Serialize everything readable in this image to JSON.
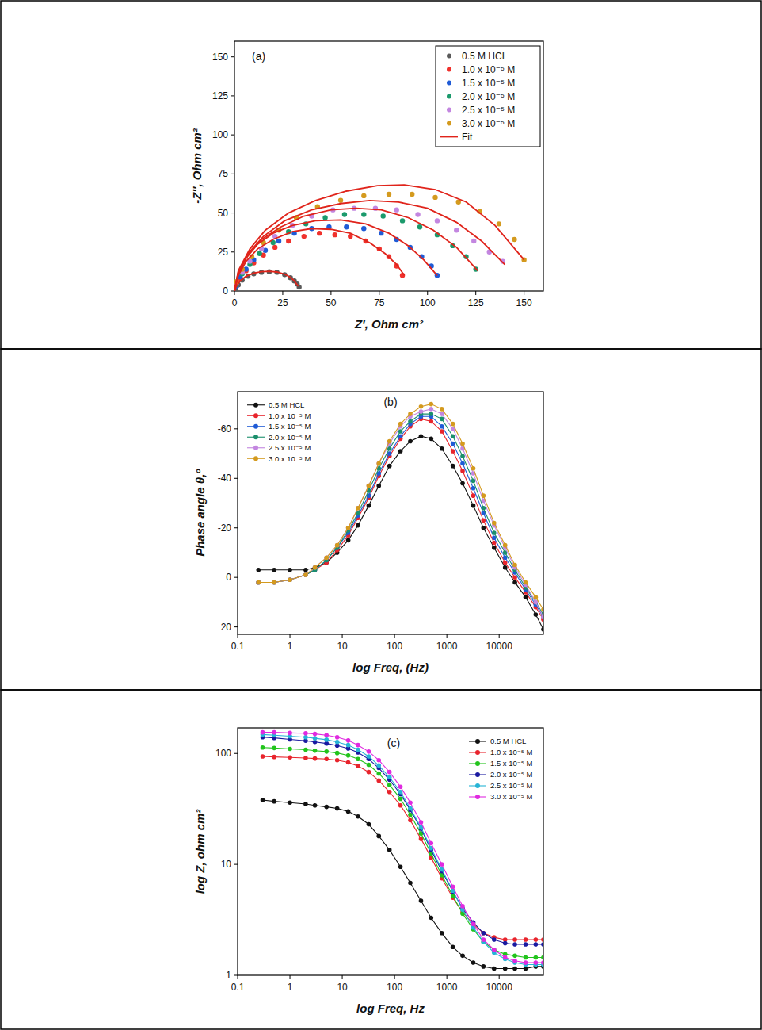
{
  "chart_data": [
    {
      "type": "scatter",
      "title": "(a)",
      "x_label": "Z′, Ohm cm²",
      "y_label": "-Z″, Ohm cm²",
      "xlim": [
        0,
        160
      ],
      "ylim": [
        0,
        160
      ],
      "xticks": [
        0,
        25,
        50,
        75,
        100,
        125,
        150
      ],
      "yticks": [
        0,
        25,
        50,
        75,
        100,
        125,
        150
      ],
      "grid": false,
      "legend": "upper right",
      "series": [
        {
          "name": "0.5 M HCL",
          "color": "#5a5a5a",
          "marker": "circle",
          "x": [
            0.5,
            2,
            4,
            7,
            10,
            14,
            18,
            22,
            26,
            29,
            31,
            32.5,
            33.5
          ],
          "values": [
            1,
            4,
            7,
            9.5,
            11,
            12,
            12.3,
            12,
            10.5,
            8.5,
            6.5,
            4.5,
            2.5
          ]
        },
        {
          "name": "1.0 x 10⁻⁵ M",
          "color": "#f0312c",
          "marker": "circle",
          "x": [
            1,
            3,
            6,
            10,
            15,
            21,
            28,
            36,
            44,
            52,
            60,
            68,
            75,
            80,
            84,
            87
          ],
          "values": [
            3,
            8,
            13,
            18,
            23,
            28,
            32,
            35,
            37,
            36,
            35,
            32,
            27,
            22,
            16,
            10
          ]
        },
        {
          "name": "1.5 x 10⁻⁵ M",
          "color": "#1f5bd6",
          "marker": "circle",
          "x": [
            1,
            3,
            6,
            10,
            16,
            23,
            31,
            40,
            49,
            58,
            67,
            76,
            84,
            91,
            97,
            102,
            105
          ],
          "values": [
            3,
            9,
            14,
            20,
            26,
            32,
            37,
            40,
            41,
            41,
            40,
            37,
            33,
            28,
            22,
            16,
            10
          ]
        },
        {
          "name": "2.0 x 10⁻⁵ M",
          "color": "#1b9a6c",
          "marker": "circle",
          "x": [
            1,
            4,
            8,
            13,
            20,
            28,
            37,
            47,
            57,
            67,
            77,
            87,
            96,
            105,
            113,
            120,
            125
          ],
          "values": [
            4,
            11,
            17,
            24,
            31,
            38,
            43,
            47,
            49,
            49,
            48,
            45,
            41,
            36,
            29,
            22,
            14
          ]
        },
        {
          "name": "2.5 x 10⁻⁵ M",
          "color": "#c386e0",
          "marker": "circle",
          "x": [
            1,
            4,
            8,
            14,
            21,
            30,
            40,
            51,
            62,
            73,
            84,
            95,
            105,
            115,
            124,
            132,
            139
          ],
          "values": [
            5,
            12,
            19,
            27,
            35,
            42,
            48,
            52,
            53,
            53,
            52,
            49,
            45,
            39,
            32,
            25,
            19
          ]
        },
        {
          "name": "3.0 x 10⁻⁵ M",
          "color": "#d49a1e",
          "marker": "circle",
          "x": [
            1,
            4,
            9,
            15,
            23,
            32,
            43,
            55,
            67,
            80,
            92,
            104,
            116,
            127,
            137,
            145,
            150
          ],
          "values": [
            6,
            14,
            22,
            31,
            39,
            47,
            54,
            58,
            61,
            62,
            62,
            60,
            57,
            51,
            43,
            33,
            20
          ]
        },
        {
          "name": "Fit",
          "color": "#e0241b",
          "type": "line",
          "x": [
            0,
            1,
            3,
            6,
            10,
            14,
            18,
            22,
            26,
            29,
            31,
            33,
            null,
            0,
            2,
            6,
            12,
            20,
            30,
            40,
            50,
            60,
            70,
            78,
            84,
            88,
            null,
            0,
            2,
            6,
            12,
            20,
            30,
            42,
            55,
            68,
            80,
            90,
            98,
            105,
            null,
            0,
            2,
            7,
            14,
            24,
            36,
            50,
            63,
            76,
            90,
            103,
            115,
            126,
            null,
            0,
            2,
            7,
            15,
            26,
            40,
            55,
            70,
            85,
            100,
            115,
            128,
            140,
            null,
            0,
            2,
            8,
            16,
            28,
            42,
            58,
            74,
            88,
            104,
            120,
            135,
            150
          ],
          "values": [
            0,
            3,
            6.5,
            9.5,
            11.5,
            12.4,
            12.6,
            12.2,
            10.8,
            8.8,
            6.5,
            3,
            null,
            0,
            10,
            19,
            27,
            33,
            38,
            40,
            39.5,
            37,
            31,
            24,
            17,
            10,
            null,
            0,
            11,
            21,
            30,
            37,
            42,
            45,
            45.5,
            43,
            37,
            29,
            20,
            10,
            null,
            0,
            12,
            23,
            33,
            41,
            48,
            52,
            53,
            52,
            47,
            39,
            28,
            13,
            null,
            0,
            12,
            24,
            35,
            45,
            52,
            56,
            58,
            57,
            53,
            44,
            32,
            17,
            null,
            0,
            13,
            27,
            39,
            50,
            58,
            64,
            67.5,
            68,
            65,
            57,
            42,
            20
          ]
        }
      ]
    },
    {
      "type": "line",
      "title": "(b)",
      "x_label": "log Freq, (Hz)",
      "y_label": "Phase angle θ,º",
      "log": "x",
      "marker": "circle",
      "grid": false,
      "legend": "upper left",
      "xlim": [
        0.1,
        70000
      ],
      "ylim": [
        23,
        -75
      ],
      "xticks": [
        0.1,
        1,
        10,
        100,
        1000,
        10000
      ],
      "yticks": [
        -60,
        -40,
        -20,
        0,
        20
      ],
      "x": [
        0.25,
        0.5,
        1,
        2,
        3,
        5,
        8,
        13,
        20,
        32,
        50,
        80,
        130,
        200,
        320,
        500,
        800,
        1300,
        2000,
        3200,
        5000,
        8000,
        13000,
        20000,
        32000,
        50000,
        70000
      ],
      "series": [
        {
          "name": "0.5 M HCL",
          "color": "#111111",
          "values": [
            -3,
            -3,
            -3,
            -3,
            -4,
            -6,
            -10,
            -15,
            -21,
            -29,
            -37,
            -45,
            -51,
            -55,
            -57,
            -56,
            -52,
            -45,
            -38,
            -29,
            -20,
            -12,
            -4,
            2,
            8,
            15,
            21
          ]
        },
        {
          "name": "1.0 x 10⁻⁵ M",
          "color": "#e8242c",
          "values": [
            2,
            2,
            1,
            -1,
            -3,
            -6,
            -11,
            -17,
            -24,
            -32,
            -41,
            -49,
            -56,
            -61,
            -64,
            -63,
            -59,
            -51,
            -43,
            -33,
            -23,
            -14,
            -6,
            0,
            6,
            12,
            17
          ]
        },
        {
          "name": "1.5 x 10⁻⁵ M",
          "color": "#1f5bd6",
          "values": [
            2,
            2,
            1,
            -1,
            -3,
            -7,
            -12,
            -18,
            -25,
            -33,
            -42,
            -50,
            -57,
            -62,
            -65,
            -65,
            -61,
            -54,
            -46,
            -36,
            -26,
            -16,
            -8,
            -2,
            5,
            11,
            16
          ]
        },
        {
          "name": "2.0 x 10⁻⁵ M",
          "color": "#1b8f6c",
          "values": [
            2,
            2,
            1,
            -1,
            -3,
            -7,
            -12,
            -19,
            -26,
            -35,
            -44,
            -52,
            -59,
            -63,
            -66,
            -66,
            -64,
            -57,
            -49,
            -39,
            -28,
            -18,
            -10,
            -3,
            4,
            10,
            15
          ]
        },
        {
          "name": "2.5 x 10⁻⁵ M",
          "color": "#c386e0",
          "values": [
            2,
            2,
            1,
            -1,
            -4,
            -8,
            -13,
            -20,
            -28,
            -37,
            -46,
            -54,
            -61,
            -65,
            -67,
            -68,
            -66,
            -60,
            -52,
            -42,
            -31,
            -21,
            -12,
            -4,
            3,
            10,
            16
          ]
        },
        {
          "name": "3.0 x 10⁻⁵ M",
          "color": "#d49a1e",
          "values": [
            2,
            2,
            1,
            -1,
            -4,
            -8,
            -13,
            -20,
            -28,
            -37,
            -46,
            -55,
            -62,
            -66,
            -69,
            -70,
            -68,
            -62,
            -54,
            -44,
            -33,
            -22,
            -13,
            -5,
            2,
            8,
            13
          ]
        }
      ]
    },
    {
      "type": "line",
      "title": "(c)",
      "x_label": "log Freq, Hz",
      "y_label": "log Z, ohm cm²",
      "log": true,
      "marker": "circle",
      "grid": false,
      "legend": "upper right",
      "xlim": [
        0.1,
        70000
      ],
      "ylim": [
        1,
        170
      ],
      "xticks": [
        0.1,
        1,
        10,
        100,
        1000,
        10000
      ],
      "yticks": [
        1,
        10,
        100
      ],
      "x": [
        0.3,
        0.5,
        1,
        2,
        3,
        5,
        8,
        13,
        20,
        32,
        50,
        80,
        130,
        200,
        320,
        500,
        800,
        1300,
        2000,
        3200,
        5000,
        8000,
        13000,
        20000,
        32000,
        50000,
        70000
      ],
      "series": [
        {
          "name": "0.5 M HCL",
          "color": "#111111",
          "values": [
            38,
            37,
            36,
            35,
            34,
            33,
            32,
            30,
            27,
            23,
            18,
            13.5,
            9.5,
            6.8,
            4.7,
            3.3,
            2.4,
            1.8,
            1.5,
            1.3,
            1.2,
            1.15,
            1.15,
            1.15,
            1.15,
            1.2,
            1.2
          ]
        },
        {
          "name": "1.0 x 10⁻⁵ M",
          "color": "#e8242c",
          "values": [
            94,
            93,
            92,
            91,
            90,
            89,
            87,
            83,
            77,
            68,
            57,
            45,
            34,
            25,
            17,
            11.5,
            7.5,
            5,
            3.7,
            2.9,
            2.4,
            2.2,
            2.1,
            2.1,
            2.1,
            2.1,
            2.1
          ]
        },
        {
          "name": "1.5 x 10⁻⁵ M",
          "color": "#22c41c",
          "values": [
            113,
            112,
            110,
            108,
            106,
            104,
            101,
            96,
            89,
            79,
            66,
            52,
            39,
            28,
            19,
            12.5,
            8,
            5.2,
            3.6,
            2.6,
            2,
            1.7,
            1.55,
            1.5,
            1.45,
            1.45,
            1.45
          ]
        },
        {
          "name": "2.0 x 10⁻⁵ M",
          "color": "#1a1aa0",
          "values": [
            140,
            138,
            134,
            130,
            127,
            123,
            118,
            111,
            102,
            89,
            74,
            58,
            43,
            31,
            21,
            13.5,
            8.7,
            5.7,
            4,
            3,
            2.4,
            2.1,
            1.95,
            1.9,
            1.9,
            1.9,
            1.9
          ]
        },
        {
          "name": "2.5 x 10⁻⁵ M",
          "color": "#27b4d6",
          "values": [
            148,
            146,
            143,
            140,
            137,
            133,
            127,
            119,
            108,
            94,
            78,
            61,
            45,
            32,
            21.5,
            14,
            9,
            5.8,
            3.9,
            2.7,
            2,
            1.6,
            1.4,
            1.3,
            1.25,
            1.25,
            1.25
          ]
        },
        {
          "name": "3.0 x 10⁻⁵ M",
          "color": "#e02ae0",
          "values": [
            155,
            155,
            153,
            152,
            150,
            146,
            140,
            131,
            119,
            104,
            87,
            68,
            50,
            36,
            24,
            15.5,
            10,
            6.3,
            4.2,
            2.9,
            2.1,
            1.7,
            1.45,
            1.35,
            1.3,
            1.3,
            1.3
          ]
        }
      ]
    }
  ]
}
